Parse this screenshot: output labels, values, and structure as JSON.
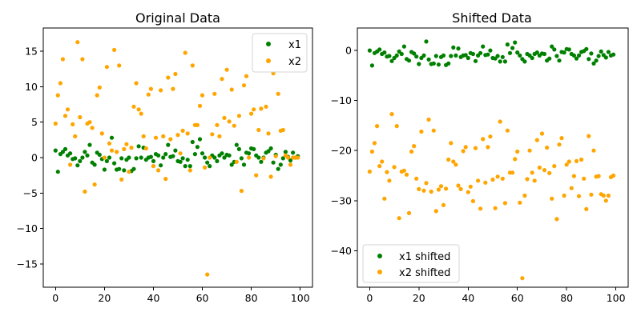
{
  "chart_data": [
    {
      "type": "scatter",
      "title": "Original Data",
      "xlabel": "",
      "ylabel": "",
      "xlim": [
        -5,
        105
      ],
      "ylim": [
        -18.3,
        18.3
      ],
      "x_ticks": [
        0,
        20,
        40,
        60,
        80,
        100
      ],
      "y_ticks": [
        -15,
        -10,
        -5,
        0,
        5,
        10,
        15
      ],
      "grid": false,
      "legend_position": "top-right",
      "series": [
        {
          "name": "x1",
          "color": "#008000",
          "x": [
            0,
            1,
            2,
            3,
            4,
            5,
            6,
            7,
            8,
            9,
            10,
            11,
            12,
            13,
            14,
            15,
            16,
            17,
            18,
            19,
            20,
            21,
            22,
            23,
            24,
            25,
            26,
            27,
            28,
            29,
            30,
            31,
            32,
            33,
            34,
            35,
            36,
            37,
            38,
            39,
            40,
            41,
            42,
            43,
            44,
            45,
            46,
            47,
            48,
            49,
            50,
            51,
            52,
            53,
            54,
            55,
            56,
            57,
            58,
            59,
            60,
            61,
            62,
            63,
            64,
            65,
            66,
            67,
            68,
            69,
            70,
            71,
            72,
            73,
            74,
            75,
            76,
            77,
            78,
            79,
            80,
            81,
            82,
            83,
            84,
            85,
            86,
            87,
            88,
            89,
            90,
            91,
            92,
            93,
            94,
            95,
            96,
            97,
            98,
            99
          ],
          "values": [
            1.0,
            -2.0,
            0.5,
            0.8,
            1.2,
            0.3,
            0.6,
            -0.2,
            -0.1,
            -1.1,
            -0.5,
            0.0,
            0.8,
            0.3,
            1.8,
            -0.7,
            -1.0,
            0.7,
            0.4,
            -0.2,
            -1.7,
            -0.5,
            0.0,
            2.8,
            -0.8,
            -1.7,
            -1.6,
            -0.1,
            -1.8,
            -0.3,
            0.0,
            -1.9,
            -1.6,
            -0.1,
            1.6,
            0.0,
            1.4,
            -0.3,
            0.0,
            0.1,
            -0.5,
            0.5,
            0.3,
            -1.1,
            0.0,
            0.5,
            1.8,
            0.1,
            0.2,
            1.0,
            -0.5,
            -0.6,
            -0.1,
            -1.2,
            -0.3,
            -1.2,
            2.2,
            0.5,
            1.5,
            2.6,
            0.6,
            0.0,
            -0.7,
            -1.2,
            0.3,
            0.0,
            -0.5,
            0.3,
            0.6,
            0.0,
            0.4,
            0.3,
            -1.0,
            -0.6,
            1.8,
            1.2,
            -0.1,
            -1.0,
            0.7,
            0.6,
            1.3,
            1.2,
            0.3,
            0.0,
            -0.6,
            0.0,
            0.7,
            0.9,
            1.3,
            -0.7,
            0.4,
            -1.6,
            -1.0,
            -0.1,
            0.8,
            0.1,
            -0.4,
            0.7,
            0.0,
            0.2
          ]
        },
        {
          "name": "x2",
          "color": "#FFA500",
          "x": [
            0,
            1,
            2,
            3,
            4,
            5,
            6,
            7,
            8,
            9,
            10,
            11,
            12,
            13,
            14,
            15,
            16,
            17,
            18,
            19,
            20,
            21,
            22,
            23,
            24,
            25,
            26,
            27,
            28,
            29,
            30,
            31,
            32,
            33,
            34,
            35,
            36,
            37,
            38,
            39,
            40,
            41,
            42,
            43,
            44,
            45,
            46,
            47,
            48,
            49,
            50,
            51,
            52,
            53,
            54,
            55,
            56,
            57,
            58,
            59,
            60,
            61,
            62,
            63,
            64,
            65,
            66,
            67,
            68,
            69,
            70,
            71,
            72,
            73,
            74,
            75,
            76,
            77,
            78,
            79,
            80,
            81,
            82,
            83,
            84,
            85,
            86,
            87,
            88,
            89,
            90,
            91,
            92,
            93,
            94,
            95,
            96,
            97,
            98,
            99
          ],
          "values": [
            4.8,
            8.8,
            10.5,
            13.9,
            5.9,
            6.8,
            -1.0,
            4.7,
            3.0,
            16.3,
            5.7,
            13.9,
            -4.8,
            4.8,
            5.0,
            4.2,
            -3.8,
            8.8,
            9.9,
            3.4,
            0.0,
            12.8,
            2.0,
            1.0,
            15.2,
            0.8,
            13.0,
            -3.1,
            1.2,
            1.9,
            -2.0,
            1.4,
            7.2,
            10.5,
            6.8,
            6.2,
            3.0,
            1.3,
            8.9,
            9.7,
            -1.2,
            2.8,
            -1.8,
            9.5,
            3.0,
            -3.0,
            11.3,
            2.6,
            9.7,
            11.8,
            3.2,
            0.6,
            3.8,
            14.8,
            3.4,
            -1.8,
            13.0,
            4.6,
            4.6,
            7.3,
            8.8,
            -1.4,
            -16.5,
            0.0,
            3.3,
            9.0,
            4.6,
            3.0,
            11.1,
            5.6,
            12.4,
            5.1,
            9.6,
            4.5,
            -0.6,
            5.9,
            -4.7,
            10.2,
            11.5,
            0.0,
            6.2,
            6.8,
            -2.5,
            3.9,
            6.9,
            -0.1,
            7.2,
            3.4,
            -2.7,
            11.9,
            0.2,
            9.0,
            3.8,
            3.9,
            0.3,
            0.0,
            -1.0,
            0.0,
            0.0,
            0.0
          ]
        }
      ]
    },
    {
      "type": "scatter",
      "title": "Shifted Data",
      "xlabel": "",
      "ylabel": "",
      "xlim": [
        -5,
        105
      ],
      "ylim": [
        -47.3,
        4.5
      ],
      "x_ticks": [
        0,
        20,
        40,
        60,
        80,
        100
      ],
      "y_ticks": [
        -40,
        -30,
        -20,
        -10,
        0
      ],
      "grid": false,
      "legend_position": "bottom-left",
      "series": [
        {
          "name": "x1 shifted",
          "color": "#008000",
          "x": [
            0,
            1,
            2,
            3,
            4,
            5,
            6,
            7,
            8,
            9,
            10,
            11,
            12,
            13,
            14,
            15,
            16,
            17,
            18,
            19,
            20,
            21,
            22,
            23,
            24,
            25,
            26,
            27,
            28,
            29,
            30,
            31,
            32,
            33,
            34,
            35,
            36,
            37,
            38,
            39,
            40,
            41,
            42,
            43,
            44,
            45,
            46,
            47,
            48,
            49,
            50,
            51,
            52,
            53,
            54,
            55,
            56,
            57,
            58,
            59,
            60,
            61,
            62,
            63,
            64,
            65,
            66,
            67,
            68,
            69,
            70,
            71,
            72,
            73,
            74,
            75,
            76,
            77,
            78,
            79,
            80,
            81,
            82,
            83,
            84,
            85,
            86,
            87,
            88,
            89,
            90,
            91,
            92,
            93,
            94,
            95,
            96,
            97,
            98,
            99
          ],
          "values": [
            0.0,
            -3.0,
            -0.5,
            -0.2,
            0.2,
            -0.7,
            -0.4,
            -1.2,
            -1.1,
            -2.1,
            -1.5,
            -1.0,
            -0.2,
            -0.7,
            0.8,
            -1.7,
            -2.0,
            -0.3,
            -0.6,
            -1.2,
            -2.7,
            -1.5,
            -1.0,
            1.8,
            -1.8,
            -2.7,
            -2.6,
            -1.1,
            -2.8,
            -1.3,
            -1.0,
            -2.9,
            -2.6,
            -1.1,
            0.6,
            -1.0,
            0.4,
            -1.3,
            -1.0,
            -0.9,
            -1.5,
            -0.5,
            -0.7,
            -2.1,
            -1.0,
            -0.5,
            0.8,
            -0.9,
            -0.8,
            0.0,
            -1.5,
            -1.6,
            -1.1,
            -2.2,
            -1.3,
            -2.2,
            1.2,
            -0.5,
            0.5,
            1.6,
            -0.4,
            -1.0,
            -1.7,
            -2.2,
            -0.7,
            -1.0,
            -1.5,
            -0.7,
            -0.4,
            -1.0,
            -0.6,
            -0.7,
            -2.0,
            -1.6,
            0.8,
            0.2,
            -1.1,
            -2.0,
            -0.3,
            -0.4,
            0.3,
            0.2,
            -0.7,
            -1.0,
            -1.6,
            -1.0,
            -0.3,
            -0.1,
            0.3,
            -1.7,
            -0.6,
            -2.6,
            -2.0,
            -1.1,
            -0.2,
            -0.9,
            -1.4,
            -0.3,
            -1.0,
            -0.8
          ]
        },
        {
          "name": "x2 shifted",
          "color": "#FFA500",
          "x": [
            0,
            1,
            2,
            3,
            4,
            5,
            6,
            7,
            8,
            9,
            10,
            11,
            12,
            13,
            14,
            15,
            16,
            17,
            18,
            19,
            20,
            21,
            22,
            23,
            24,
            25,
            26,
            27,
            28,
            29,
            30,
            31,
            32,
            33,
            34,
            35,
            36,
            37,
            38,
            39,
            40,
            41,
            42,
            43,
            44,
            45,
            46,
            47,
            48,
            49,
            50,
            51,
            52,
            53,
            54,
            55,
            56,
            57,
            58,
            59,
            60,
            61,
            62,
            63,
            64,
            65,
            66,
            67,
            68,
            69,
            70,
            71,
            72,
            73,
            74,
            75,
            76,
            77,
            78,
            79,
            80,
            81,
            82,
            83,
            84,
            85,
            86,
            87,
            88,
            89,
            90,
            91,
            92,
            93,
            94,
            95,
            96,
            97,
            98,
            99
          ],
          "values": [
            -24.2,
            -20.2,
            -18.5,
            -15.1,
            -23.1,
            -22.2,
            -29.6,
            -24.3,
            -26.0,
            -12.7,
            -23.3,
            -15.1,
            -33.5,
            -24.2,
            -24.0,
            -24.8,
            -32.5,
            -20.2,
            -19.1,
            -25.6,
            -27.7,
            -16.2,
            -28.0,
            -26.5,
            -13.8,
            -28.2,
            -16.0,
            -32.1,
            -27.8,
            -27.1,
            -30.9,
            -27.6,
            -21.8,
            -18.5,
            -22.2,
            -22.8,
            -27.0,
            -27.7,
            -20.1,
            -19.3,
            -28.3,
            -27.2,
            -30.1,
            -19.5,
            -26.0,
            -31.6,
            -17.7,
            -26.4,
            -19.3,
            -17.2,
            -25.8,
            -31.5,
            -25.2,
            -14.2,
            -25.6,
            -30.5,
            -16.0,
            -24.4,
            -24.4,
            -21.7,
            -20.2,
            -30.4,
            -45.5,
            -29.0,
            -25.7,
            -20.0,
            -24.4,
            -26.0,
            -17.9,
            -23.4,
            -16.6,
            -23.9,
            -19.4,
            -24.5,
            -29.6,
            -23.1,
            -33.7,
            -18.8,
            -17.5,
            -29.0,
            -22.8,
            -22.2,
            -27.5,
            -25.1,
            -22.1,
            -29.1,
            -21.8,
            -25.6,
            -31.7,
            -17.1,
            -28.8,
            -20.0,
            -25.2,
            -25.1,
            -28.7,
            -29.0,
            -30.0,
            -29.0,
            -25.3,
            -25.0
          ]
        }
      ]
    }
  ]
}
